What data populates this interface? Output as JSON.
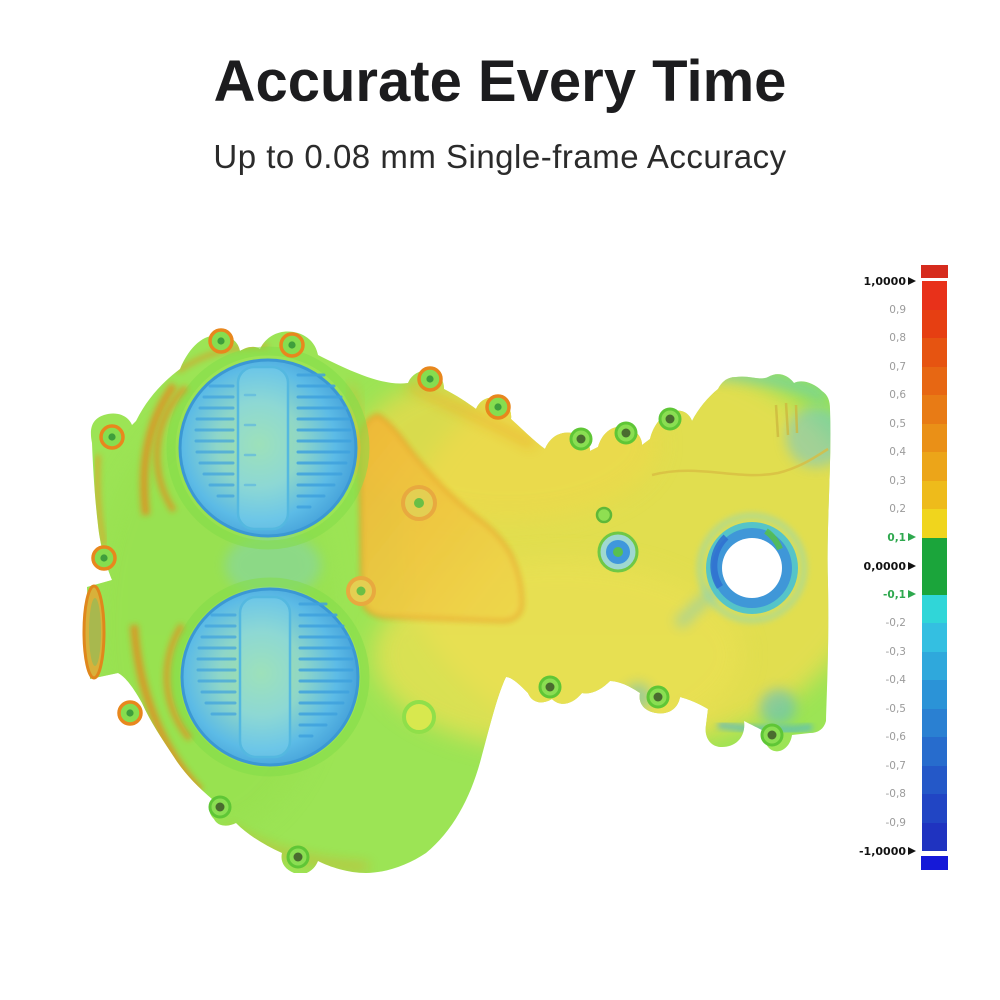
{
  "header": {
    "title": "Accurate Every Time",
    "subtitle": "Up to 0.08 mm Single-frame Accuracy"
  },
  "palette": {
    "body_green": "#9ce455",
    "hot_yellow": "#eedd4f",
    "edge_orange": "#e8871a",
    "boss_blue": "#3f9ad6",
    "teal_accent": "#5fc8c8",
    "title_text": "#1c1c1e",
    "subtitle_text": "#2b2b2b",
    "tick_gray": "#9b9b9b",
    "tick_green": "#2ea84e",
    "tick_black": "#121212"
  },
  "chart_data": {
    "type": "heatmap",
    "title": "Accurate Every Time",
    "subtitle": "Up to 0.08 mm Single-frame Accuracy",
    "description": "3D scan deviation color map (surface comparison) of an engine timing-chain cover; green body within tolerance, blue recessed pulley bosses, orange/yellow raised plate, numeric deviation scale at right",
    "colorbar": {
      "range": [
        -1,
        1
      ],
      "decimal_style": "comma",
      "tolerance_band": {
        "from": -0.1,
        "to": 0.1,
        "color": "#1ba53b"
      },
      "caps": {
        "top": "#d62b1d",
        "bottom": "#1519d8"
      },
      "ticks": [
        {
          "label": "1,0000",
          "value": 1.0,
          "emphasis": "major"
        },
        {
          "label": "0,9",
          "value": 0.9,
          "emphasis": "minor"
        },
        {
          "label": "0,8",
          "value": 0.8,
          "emphasis": "minor"
        },
        {
          "label": "0,7",
          "value": 0.7,
          "emphasis": "minor"
        },
        {
          "label": "0,6",
          "value": 0.6,
          "emphasis": "minor"
        },
        {
          "label": "0,5",
          "value": 0.5,
          "emphasis": "minor"
        },
        {
          "label": "0,4",
          "value": 0.4,
          "emphasis": "minor"
        },
        {
          "label": "0,3",
          "value": 0.3,
          "emphasis": "minor"
        },
        {
          "label": "0,2",
          "value": 0.2,
          "emphasis": "minor"
        },
        {
          "label": "0,1",
          "value": 0.1,
          "emphasis": "tolerance"
        },
        {
          "label": "0,0000",
          "value": 0.0,
          "emphasis": "major"
        },
        {
          "label": "-0,1",
          "value": -0.1,
          "emphasis": "tolerance"
        },
        {
          "label": "-0,2",
          "value": -0.2,
          "emphasis": "minor"
        },
        {
          "label": "-0,3",
          "value": -0.3,
          "emphasis": "minor"
        },
        {
          "label": "-0,4",
          "value": -0.4,
          "emphasis": "minor"
        },
        {
          "label": "-0,5",
          "value": -0.5,
          "emphasis": "minor"
        },
        {
          "label": "-0,6",
          "value": -0.6,
          "emphasis": "minor"
        },
        {
          "label": "-0,7",
          "value": -0.7,
          "emphasis": "minor"
        },
        {
          "label": "-0,8",
          "value": -0.8,
          "emphasis": "minor"
        },
        {
          "label": "-0,9",
          "value": -0.9,
          "emphasis": "minor"
        },
        {
          "label": "-1,0000",
          "value": -1.0,
          "emphasis": "major"
        }
      ],
      "segments": [
        {
          "from": 1.0,
          "to": 0.9,
          "color": "#e8311a"
        },
        {
          "from": 0.9,
          "to": 0.8,
          "color": "#e63f12"
        },
        {
          "from": 0.8,
          "to": 0.7,
          "color": "#e65411"
        },
        {
          "from": 0.7,
          "to": 0.6,
          "color": "#e76713"
        },
        {
          "from": 0.6,
          "to": 0.5,
          "color": "#e87b15"
        },
        {
          "from": 0.5,
          "to": 0.4,
          "color": "#ea9017"
        },
        {
          "from": 0.4,
          "to": 0.3,
          "color": "#eca519"
        },
        {
          "from": 0.3,
          "to": 0.2,
          "color": "#eebb1b"
        },
        {
          "from": 0.2,
          "to": 0.1,
          "color": "#f0d51d"
        },
        {
          "from": 0.1,
          "to": -0.1,
          "color": "#1ba53b"
        },
        {
          "from": -0.1,
          "to": -0.2,
          "color": "#30d6d8"
        },
        {
          "from": -0.2,
          "to": -0.3,
          "color": "#34bfe1"
        },
        {
          "from": -0.3,
          "to": -0.4,
          "color": "#2fa8dc"
        },
        {
          "from": -0.4,
          "to": -0.5,
          "color": "#2b93d7"
        },
        {
          "from": -0.5,
          "to": -0.6,
          "color": "#2a80d2"
        },
        {
          "from": -0.6,
          "to": -0.7,
          "color": "#276ccd"
        },
        {
          "from": -0.7,
          "to": -0.8,
          "color": "#2458c8"
        },
        {
          "from": -0.8,
          "to": -0.9,
          "color": "#2145c4"
        },
        {
          "from": -0.9,
          "to": -1.0,
          "color": "#1f33c0"
        }
      ]
    }
  }
}
